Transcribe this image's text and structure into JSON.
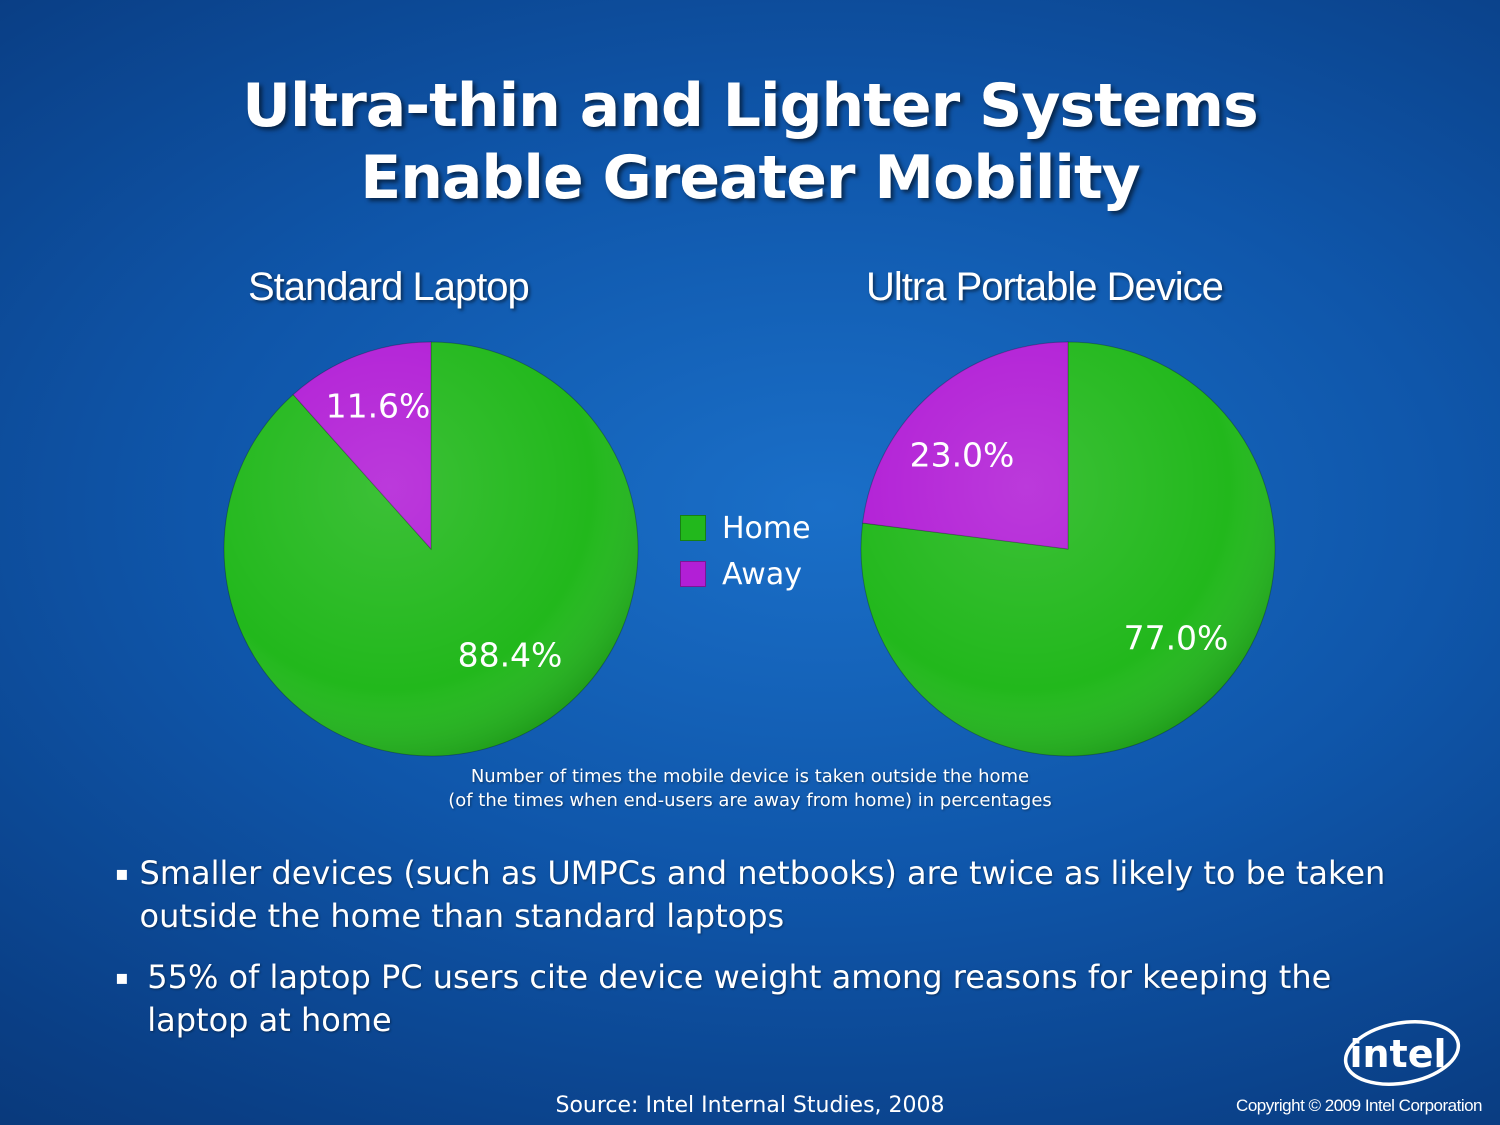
{
  "slide": {
    "title_line1": "Ultra-thin and Lighter Systems",
    "title_line2": "Enable Greater Mobility",
    "caption_line1": "Number of times the mobile device is taken outside the home",
    "caption_line2": "(of the times when end-users are away from home) in percentages",
    "bullets": [
      "Smaller devices (such as UMPCs and netbooks) are twice as likely to be taken outside the home than standard laptops",
      "55% of laptop PC users cite device weight among reasons for keeping the laptop at home"
    ],
    "bullet_mark": "▪",
    "source": "Source:  Intel Internal Studies, 2008",
    "copyright": "Copyright © 2009 Intel Corporation",
    "logo_text": "intel"
  },
  "legend": [
    {
      "label": "Home",
      "color": "#22b81c"
    },
    {
      "label": "Away",
      "color": "#b21fd6"
    }
  ],
  "chart_data": [
    {
      "type": "pie",
      "title": "Standard Laptop",
      "slices": [
        {
          "name": "Home",
          "value": 88.4,
          "label": "88.4%",
          "color": "#22b81c"
        },
        {
          "name": "Away",
          "value": 11.6,
          "label": "11.6%",
          "color": "#b21fd6"
        }
      ]
    },
    {
      "type": "pie",
      "title": "Ultra Portable Device",
      "slices": [
        {
          "name": "Home",
          "value": 77.0,
          "label": "77.0%",
          "color": "#22b81c"
        },
        {
          "name": "Away",
          "value": 23.0,
          "label": "23.0%",
          "color": "#b21fd6"
        }
      ]
    }
  ]
}
